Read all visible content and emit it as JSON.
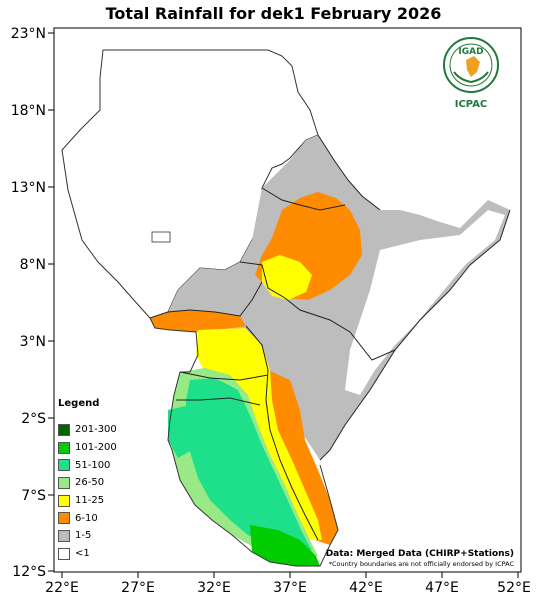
{
  "title": "Total Rainfall for dek1 February 2026",
  "axes": {
    "lat_ticks": [
      "23°N",
      "18°N",
      "13°N",
      "8°N",
      "3°N",
      "2°S",
      "7°S",
      "12°S"
    ],
    "lon_ticks": [
      "22°E",
      "27°E",
      "32°E",
      "37°E",
      "42°E",
      "47°E",
      "52°E"
    ]
  },
  "legend": {
    "title": "Legend",
    "items": [
      {
        "label": "201-300",
        "color": "#006400"
      },
      {
        "label": "101-200",
        "color": "#00cc00"
      },
      {
        "label": "51-100",
        "color": "#1ee08a"
      },
      {
        "label": "26-50",
        "color": "#99ea86"
      },
      {
        "label": "11-25",
        "color": "#ffff00"
      },
      {
        "label": "6-10",
        "color": "#ff8c00"
      },
      {
        "label": "1-5",
        "color": "#bdbdbd"
      },
      {
        "label": "<1",
        "color": "#ffffff"
      }
    ]
  },
  "logo": {
    "name": "IGAD",
    "org": "ICPAC"
  },
  "source": "Data: Merged Data (CHIRP+Stations)",
  "disclaimer": "*Country boundaries are not officially endorsed by ICPAC"
}
